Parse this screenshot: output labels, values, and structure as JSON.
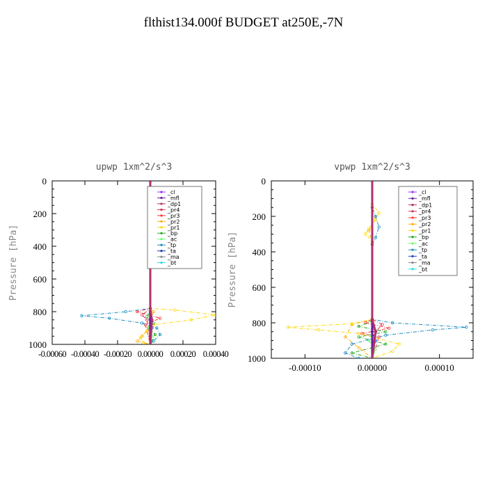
{
  "title": "flthist134.000f  BUDGET at250E,-7N",
  "chart_data": [
    {
      "type": "line",
      "title": "upwp   1xm^2/s^3",
      "ylabel": "Pressure [hPa]",
      "xlim": [
        -0.0006,
        0.0004
      ],
      "ylim": [
        1000,
        0
      ],
      "xticks": [
        "-0.00060",
        "-0.00040",
        "-0.00020",
        "0.00000",
        "0.00020",
        "0.00040"
      ],
      "xtick_values": [
        -0.0006,
        -0.0004,
        -0.0002,
        0.0,
        0.0002,
        0.0004
      ],
      "yticks": [
        0,
        200,
        400,
        600,
        800,
        1000
      ],
      "legend_position": "top-right",
      "series": [
        {
          "name": "_cl",
          "color": "#9b30ff",
          "points": [
            [
              0,
              0
            ],
            [
              0,
              1000
            ]
          ]
        },
        {
          "name": "_mfl",
          "color": "#6a1b9a",
          "points": [
            [
              0,
              0
            ],
            [
              0,
              1000
            ]
          ]
        },
        {
          "name": "_dp1",
          "color": "#b0306a",
          "points": [
            [
              0,
              0
            ],
            [
              0,
              780
            ],
            [
              1e-05,
              850
            ],
            [
              0,
              1000
            ]
          ]
        },
        {
          "name": "_pr4",
          "color": "#cc3355",
          "points": [
            [
              0,
              0
            ],
            [
              0,
              780
            ],
            [
              -5e-05,
              820
            ],
            [
              -2e-05,
              850
            ],
            [
              0,
              1000
            ]
          ]
        },
        {
          "name": "_pr3",
          "color": "#ff3333",
          "points": [
            [
              0,
              0
            ],
            [
              0,
              780
            ],
            [
              -8e-05,
              800
            ],
            [
              6e-05,
              840
            ],
            [
              -3e-05,
              880
            ],
            [
              0,
              1000
            ]
          ]
        },
        {
          "name": "_pr2",
          "color": "#ffaa00",
          "points": [
            [
              0,
              0
            ],
            [
              -1e-05,
              200
            ],
            [
              0,
              250
            ],
            [
              0,
              780
            ],
            [
              2e-05,
              800
            ],
            [
              -1e-05,
              900
            ],
            [
              -5e-05,
              950
            ],
            [
              -8e-05,
              980
            ],
            [
              0,
              1000
            ]
          ]
        },
        {
          "name": "_pr1",
          "color": "#ffd700",
          "points": [
            [
              0,
              0
            ],
            [
              0,
              780
            ],
            [
              0.00015,
              790
            ],
            [
              0.0004,
              820
            ],
            [
              0.00025,
              850
            ],
            [
              2e-05,
              880
            ],
            [
              -2e-05,
              920
            ],
            [
              -6e-05,
              960
            ],
            [
              -4e-05,
              990
            ],
            [
              0,
              1000
            ]
          ]
        },
        {
          "name": "_bp",
          "color": "#22aa22",
          "points": [
            [
              0,
              0
            ],
            [
              0,
              800
            ],
            [
              -2e-05,
              830
            ],
            [
              2e-05,
              870
            ],
            [
              -1e-05,
              900
            ],
            [
              3e-05,
              940
            ],
            [
              1e-05,
              980
            ],
            [
              0,
              1000
            ]
          ]
        },
        {
          "name": "_ac",
          "color": "#66ff66",
          "points": [
            [
              0,
              0
            ],
            [
              0,
              850
            ],
            [
              -1e-05,
              900
            ],
            [
              1e-05,
              950
            ],
            [
              0,
              1000
            ]
          ]
        },
        {
          "name": "_tp",
          "color": "#1a8cbf",
          "points": [
            [
              0,
              0
            ],
            [
              0,
              780
            ],
            [
              -0.00015,
              800
            ],
            [
              -0.00042,
              825
            ],
            [
              -0.00025,
              840
            ],
            [
              -5e-05,
              870
            ],
            [
              4e-05,
              900
            ],
            [
              6e-05,
              940
            ],
            [
              2e-05,
              980
            ],
            [
              0,
              1000
            ]
          ]
        },
        {
          "name": "_ta",
          "color": "#1f3fbf",
          "points": [
            [
              0,
              0
            ],
            [
              0,
              850
            ],
            [
              1e-05,
              900
            ],
            [
              0,
              1000
            ]
          ]
        },
        {
          "name": "_ma",
          "color": "#888888",
          "points": [
            [
              0,
              0
            ],
            [
              0,
              1000
            ]
          ]
        },
        {
          "name": "_bt",
          "color": "#22dddd",
          "points": [
            [
              0,
              0
            ],
            [
              0,
              1000
            ]
          ]
        }
      ]
    },
    {
      "type": "line",
      "title": "vpwp   1xm^2/s^3",
      "ylabel": "Pressure [hPa]",
      "xlim": [
        -0.00015,
        0.00015
      ],
      "ylim": [
        1000,
        0
      ],
      "xticks": [
        "-0.00010",
        "0.00000",
        "0.00010"
      ],
      "xtick_values": [
        -0.0001,
        0.0,
        0.0001
      ],
      "yticks": [
        0,
        200,
        400,
        600,
        800,
        1000
      ],
      "legend_position": "top-right",
      "series": [
        {
          "name": "_cl",
          "color": "#9b30ff",
          "points": [
            [
              0,
              0
            ],
            [
              0,
              1000
            ]
          ]
        },
        {
          "name": "_mfl",
          "color": "#6a1b9a",
          "points": [
            [
              0,
              0
            ],
            [
              0,
              1000
            ]
          ]
        },
        {
          "name": "_dp1",
          "color": "#b0306a",
          "points": [
            [
              0,
              0
            ],
            [
              0,
              780
            ],
            [
              5e-06,
              850
            ],
            [
              0,
              1000
            ]
          ]
        },
        {
          "name": "_pr4",
          "color": "#cc3355",
          "points": [
            [
              0,
              0
            ],
            [
              0,
              780
            ],
            [
              1.5e-05,
              810
            ],
            [
              5e-06,
              850
            ],
            [
              0,
              1000
            ]
          ]
        },
        {
          "name": "_pr3",
          "color": "#ff3333",
          "points": [
            [
              0,
              0
            ],
            [
              0,
              780
            ],
            [
              -1e-05,
              800
            ],
            [
              2.5e-05,
              830
            ],
            [
              -1.5e-05,
              860
            ],
            [
              1e-05,
              880
            ],
            [
              0,
              1000
            ]
          ]
        },
        {
          "name": "_pr2",
          "color": "#ffaa00",
          "points": [
            [
              0,
              0
            ],
            [
              0,
              150
            ],
            [
              5e-06,
              200
            ],
            [
              -5e-06,
              280
            ],
            [
              0,
              350
            ],
            [
              0,
              780
            ],
            [
              -3e-05,
              810
            ],
            [
              -4e-05,
              880
            ],
            [
              -2e-05,
              940
            ],
            [
              0,
              1000
            ]
          ]
        },
        {
          "name": "_pr1",
          "color": "#ffd700",
          "points": [
            [
              0,
              0
            ],
            [
              0,
              130
            ],
            [
              1e-05,
              180
            ],
            [
              5e-06,
              220
            ],
            [
              -5e-06,
              270
            ],
            [
              -1e-05,
              300
            ],
            [
              0,
              340
            ],
            [
              0,
              780
            ],
            [
              -3e-05,
              805
            ],
            [
              -0.000125,
              825
            ],
            [
              -8e-05,
              840
            ],
            [
              -2e-05,
              860
            ],
            [
              4e-05,
              920
            ],
            [
              3e-05,
              960
            ],
            [
              0,
              1000
            ]
          ]
        },
        {
          "name": "_bp",
          "color": "#22aa22",
          "points": [
            [
              0,
              0
            ],
            [
              0,
              790
            ],
            [
              -2e-05,
              820
            ],
            [
              2e-05,
              850
            ],
            [
              -2e-05,
              880
            ],
            [
              2e-05,
              920
            ],
            [
              -3e-05,
              970
            ],
            [
              0,
              1000
            ]
          ]
        },
        {
          "name": "_ac",
          "color": "#66ff66",
          "points": [
            [
              0,
              0
            ],
            [
              0,
              850
            ],
            [
              -5e-06,
              900
            ],
            [
              5e-06,
              950
            ],
            [
              0,
              1000
            ]
          ]
        },
        {
          "name": "_tp",
          "color": "#1a8cbf",
          "points": [
            [
              0,
              0
            ],
            [
              0,
              150
            ],
            [
              5e-06,
              200
            ],
            [
              1e-05,
              260
            ],
            [
              5e-06,
              320
            ],
            [
              0,
              360
            ],
            [
              0,
              780
            ],
            [
              3e-05,
              800
            ],
            [
              0.00014,
              825
            ],
            [
              9e-05,
              840
            ],
            [
              2e-05,
              870
            ],
            [
              -3e-05,
              920
            ],
            [
              -4e-05,
              970
            ],
            [
              -2e-05,
              1000
            ]
          ]
        },
        {
          "name": "_ta",
          "color": "#1f3fbf",
          "points": [
            [
              0,
              0
            ],
            [
              0,
              850
            ],
            [
              5e-06,
              900
            ],
            [
              0,
              1000
            ]
          ]
        },
        {
          "name": "_ma",
          "color": "#888888",
          "points": [
            [
              0,
              0
            ],
            [
              0,
              1000
            ]
          ]
        },
        {
          "name": "_bt",
          "color": "#22dddd",
          "points": [
            [
              0,
              0
            ],
            [
              0,
              1000
            ]
          ]
        }
      ]
    }
  ]
}
